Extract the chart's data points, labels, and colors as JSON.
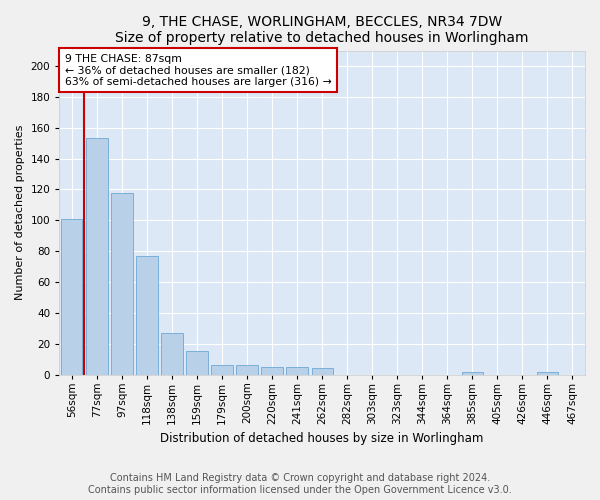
{
  "title": "9, THE CHASE, WORLINGHAM, BECCLES, NR34 7DW",
  "subtitle": "Size of property relative to detached houses in Worlingham",
  "xlabel": "Distribution of detached houses by size in Worlingham",
  "ylabel": "Number of detached properties",
  "categories": [
    "56sqm",
    "77sqm",
    "97sqm",
    "118sqm",
    "138sqm",
    "159sqm",
    "179sqm",
    "200sqm",
    "220sqm",
    "241sqm",
    "262sqm",
    "282sqm",
    "303sqm",
    "323sqm",
    "344sqm",
    "364sqm",
    "385sqm",
    "405sqm",
    "426sqm",
    "446sqm",
    "467sqm"
  ],
  "values": [
    101,
    153,
    118,
    77,
    27,
    15,
    6,
    6,
    5,
    5,
    4,
    0,
    0,
    0,
    0,
    0,
    2,
    0,
    0,
    2,
    0
  ],
  "bar_color": "#b8d0e8",
  "bar_edge_color": "#6fa8d4",
  "background_color": "#dce8f5",
  "grid_color": "#ffffff",
  "property_line_color": "#cc0000",
  "annotation_text1": "9 THE CHASE: 87sqm",
  "annotation_text2": "← 36% of detached houses are smaller (182)",
  "annotation_text3": "63% of semi-detached houses are larger (316) →",
  "annotation_box_facecolor": "#ffffff",
  "annotation_box_edgecolor": "#cc0000",
  "ylim": [
    0,
    210
  ],
  "yticks": [
    0,
    20,
    40,
    60,
    80,
    100,
    120,
    140,
    160,
    180,
    200
  ],
  "title_fontsize": 10,
  "subtitle_fontsize": 9,
  "ylabel_fontsize": 8,
  "xlabel_fontsize": 8.5,
  "tick_fontsize": 7.5,
  "footer1": "Contains HM Land Registry data © Crown copyright and database right 2024.",
  "footer2": "Contains public sector information licensed under the Open Government Licence v3.0.",
  "footer_fontsize": 7,
  "fig_facecolor": "#f0f0f0"
}
